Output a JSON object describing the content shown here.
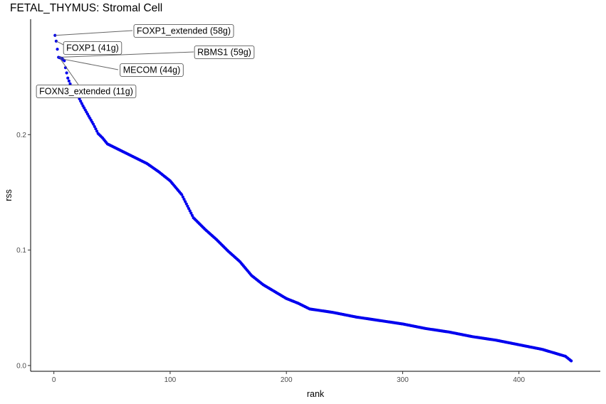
{
  "chart_data": {
    "type": "scatter",
    "title": "FETAL_THYMUS: Stromal Cell",
    "xlabel": "rank",
    "ylabel": "rss",
    "xlim": [
      -20,
      470
    ],
    "ylim": [
      -0.005,
      0.3
    ],
    "xticks": [
      0,
      100,
      200,
      300,
      400
    ],
    "xtick_labels": [
      "0",
      "100",
      "200",
      "300",
      "400"
    ],
    "yticks": [
      0.0,
      0.1,
      0.2
    ],
    "ytick_labels": [
      "0.0",
      "0.1",
      "0.2"
    ],
    "grid": false,
    "point_color": "#0000ee",
    "n_points": 445,
    "curve_points": [
      [
        1,
        0.286
      ],
      [
        2,
        0.281
      ],
      [
        4,
        0.267
      ],
      [
        7,
        0.266
      ],
      [
        9,
        0.264
      ],
      [
        10,
        0.258
      ],
      [
        12,
        0.249
      ],
      [
        14,
        0.244
      ],
      [
        16,
        0.24
      ],
      [
        20,
        0.235
      ],
      [
        25,
        0.225
      ],
      [
        30,
        0.216
      ],
      [
        34,
        0.209
      ],
      [
        38,
        0.201
      ],
      [
        42,
        0.197
      ],
      [
        46,
        0.192
      ],
      [
        52,
        0.189
      ],
      [
        60,
        0.185
      ],
      [
        70,
        0.18
      ],
      [
        80,
        0.175
      ],
      [
        90,
        0.168
      ],
      [
        100,
        0.16
      ],
      [
        110,
        0.148
      ],
      [
        120,
        0.128
      ],
      [
        130,
        0.118
      ],
      [
        140,
        0.109
      ],
      [
        150,
        0.099
      ],
      [
        160,
        0.09
      ],
      [
        170,
        0.078
      ],
      [
        180,
        0.07
      ],
      [
        190,
        0.064
      ],
      [
        200,
        0.058
      ],
      [
        210,
        0.054
      ],
      [
        220,
        0.049
      ],
      [
        240,
        0.046
      ],
      [
        260,
        0.042
      ],
      [
        280,
        0.039
      ],
      [
        300,
        0.036
      ],
      [
        320,
        0.032
      ],
      [
        340,
        0.029
      ],
      [
        360,
        0.025
      ],
      [
        380,
        0.022
      ],
      [
        400,
        0.018
      ],
      [
        420,
        0.014
      ],
      [
        430,
        0.011
      ],
      [
        440,
        0.008
      ],
      [
        445,
        0.004
      ]
    ],
    "annotations": [
      {
        "label": "FOXP1_extended (58g)",
        "x": 1,
        "y": 0.286
      },
      {
        "label": "FOXP1 (41g)",
        "x": 2,
        "y": 0.281
      },
      {
        "label": "RBMS1 (59g)",
        "x": 4,
        "y": 0.267
      },
      {
        "label": "MECOM (44g)",
        "x": 5,
        "y": 0.266
      },
      {
        "label": "FOXN3_extended (11g)",
        "x": 6,
        "y": 0.265
      }
    ]
  }
}
